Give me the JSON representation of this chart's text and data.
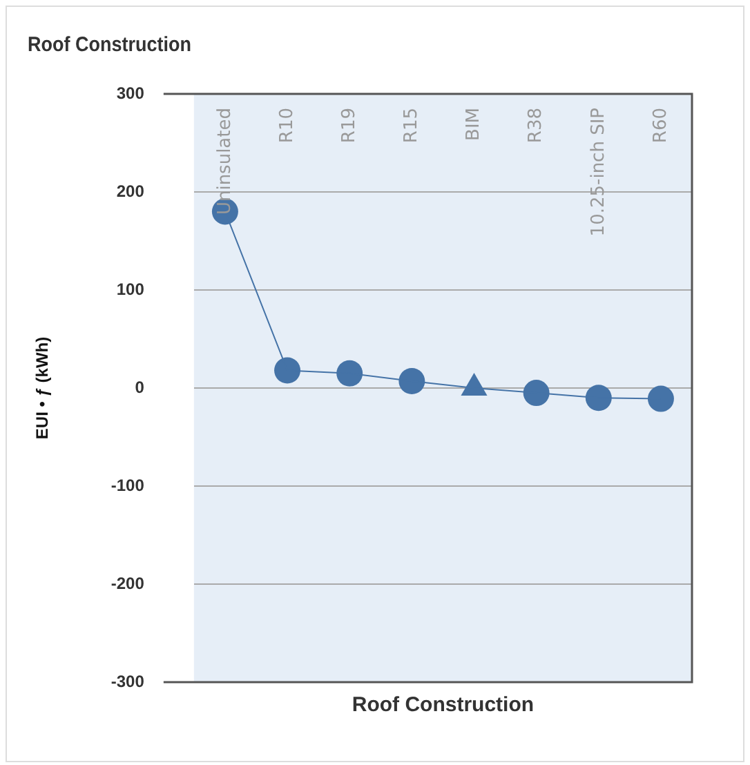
{
  "chart_data": {
    "type": "line",
    "title": "Roof Construction",
    "xlabel": "Roof Construction",
    "ylabel": "EUI • ƒ (kWh)",
    "categories": [
      "Uninsulated",
      "R10",
      "R19",
      "R15",
      "BIM",
      "R38",
      "10.25-inch SIP",
      "R60"
    ],
    "series": [
      {
        "color": "#4573a7",
        "marker": "none",
        "values": [
          180,
          18,
          15,
          7,
          0,
          -5,
          -10,
          -11
        ]
      },
      {
        "type": "scatter",
        "color": "#4573a7",
        "marker": "circle",
        "values": [
          180,
          18,
          15,
          7,
          null,
          -5,
          -10,
          -11
        ]
      },
      {
        "type": "scatter",
        "color": "#4573a7",
        "marker": "triangle",
        "values": [
          null,
          null,
          null,
          null,
          0,
          null,
          null,
          null
        ]
      }
    ],
    "ylim": [
      -300,
      300
    ],
    "yticks": [
      -300,
      -200,
      -100,
      0,
      100,
      200,
      300
    ],
    "grid": "y",
    "legend": false
  }
}
